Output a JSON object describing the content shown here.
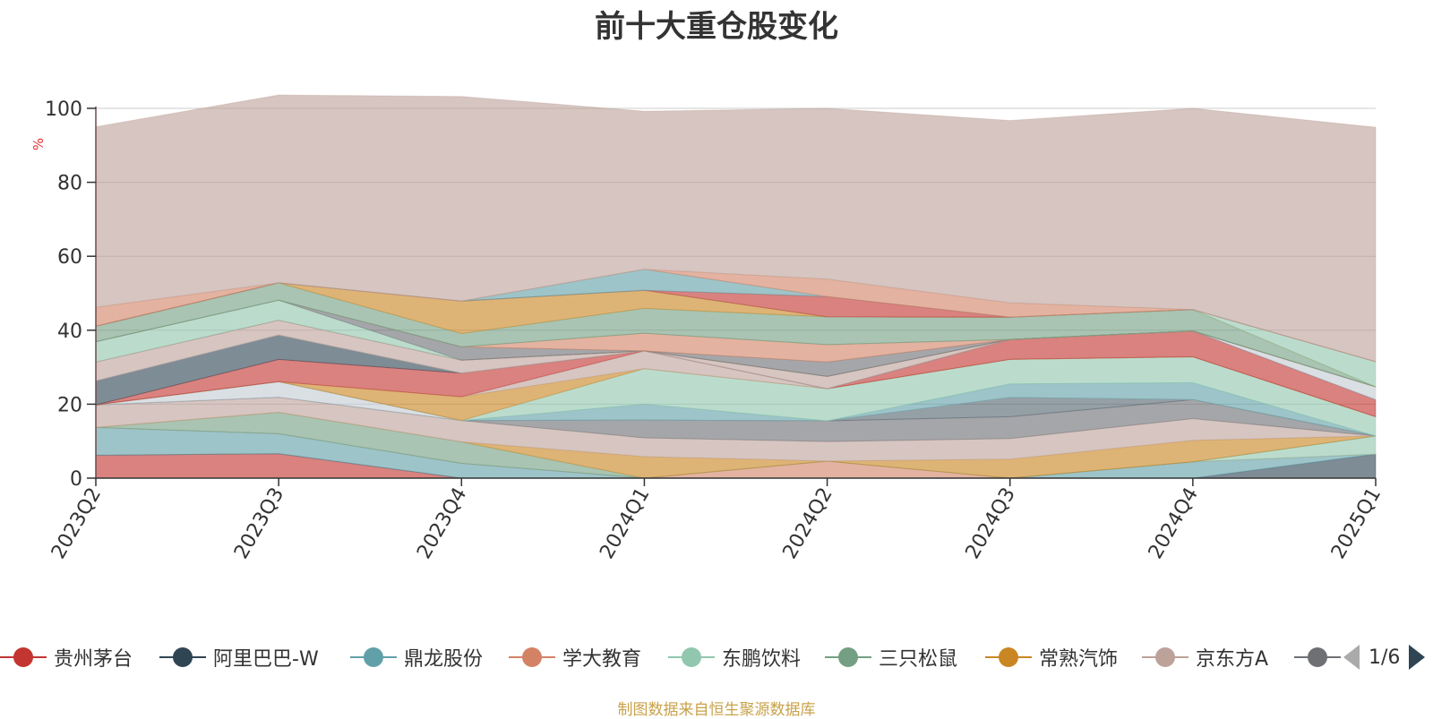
{
  "chart_data": {
    "type": "area",
    "stacked": true,
    "title": "前十大重仓股变化",
    "ylabel": "%",
    "ylim": [
      0,
      100
    ],
    "yticks": [
      0,
      20,
      40,
      60,
      80,
      100
    ],
    "grid": true,
    "categories": [
      "2023Q2",
      "2023Q3",
      "2023Q4",
      "2024Q1",
      "2024Q2",
      "2024Q3",
      "2024Q4",
      "2025Q1"
    ],
    "series": [
      {
        "name": "贵州茅台",
        "color": "#c23531",
        "values": [
          6.2,
          6.6,
          0,
          0,
          0,
          0,
          0,
          0
        ]
      },
      {
        "name": "阿里巴巴-W",
        "color": "#2f4554",
        "values": [
          0,
          0,
          0,
          0,
          0,
          0,
          0,
          6.5
        ]
      },
      {
        "name": "鼎龙股份",
        "color": "#61a0a8",
        "values": [
          7.5,
          5.4,
          4.0,
          0,
          0,
          0,
          4.4,
          0
        ]
      },
      {
        "name": "学大教育",
        "color": "#d48265",
        "values": [
          0,
          0,
          0,
          0,
          4.6,
          0,
          0,
          0
        ]
      },
      {
        "name": "东鹏饮料",
        "color": "#91c7ae",
        "values": [
          0,
          0,
          0,
          0,
          0,
          0,
          0,
          4.9
        ]
      },
      {
        "name": "三只松鼠",
        "color": "#749f83",
        "values": [
          0,
          5.8,
          5.8,
          0,
          0,
          0,
          0,
          0
        ]
      },
      {
        "name": "常熟汽饰",
        "color": "#ca8622",
        "values": [
          0,
          0,
          0,
          5.8,
          0,
          5.1,
          5.8,
          0
        ]
      },
      {
        "name": "京东方A",
        "color": "#bda29a",
        "values": [
          6.1,
          4.1,
          5.8,
          5.1,
          5.3,
          5.6,
          5.9,
          0
        ]
      },
      {
        "name": "",
        "color": "#6e7074",
        "values": [
          0,
          0,
          0,
          4.8,
          5.6,
          5.9,
          5.1,
          0
        ]
      },
      {
        "name": "",
        "color": "#546570",
        "values": [
          0,
          0,
          0,
          0,
          0,
          5.2,
          0,
          0
        ]
      },
      {
        "name": "",
        "color": "#c4ccd3",
        "values": [
          0,
          4.2,
          0,
          0,
          0,
          0,
          0,
          0
        ]
      },
      {
        "name": "",
        "color": "#bda29a",
        "values": [
          0,
          0,
          0,
          0,
          0,
          0,
          0,
          0
        ]
      },
      {
        "name": "",
        "color": "#61a0a8",
        "values": [
          0,
          0,
          0,
          4.3,
          0,
          3.7,
          4.6,
          0
        ]
      },
      {
        "name": "",
        "color": "#91c7ae",
        "values": [
          0,
          0,
          0,
          9.6,
          8.7,
          6.6,
          7.0,
          5.2
        ]
      },
      {
        "name": "",
        "color": "#c4ccd3",
        "values": [
          0,
          0,
          0,
          0,
          0,
          0,
          0,
          0
        ]
      },
      {
        "name": "",
        "color": "#ca8622",
        "values": [
          0,
          0,
          6.4,
          0,
          0,
          0,
          0,
          0
        ]
      },
      {
        "name": "",
        "color": "#bda29a",
        "values": [
          0,
          0,
          0,
          4.8,
          0,
          0,
          0,
          0
        ]
      },
      {
        "name": "",
        "color": "#c23531",
        "values": [
          0,
          6.0,
          6.4,
          0,
          0,
          5.4,
          7.0,
          4.6
        ]
      },
      {
        "name": "",
        "color": "#2f4554",
        "values": [
          6.5,
          6.6,
          0,
          0,
          0,
          0,
          0,
          0
        ]
      },
      {
        "name": "",
        "color": "#c4ccd3",
        "values": [
          0,
          0,
          0,
          0,
          0,
          0,
          0,
          3.5
        ]
      },
      {
        "name": "",
        "color": "#bda29a",
        "values": [
          5.1,
          4.0,
          3.5,
          0,
          3.3,
          0,
          0,
          0
        ]
      },
      {
        "name": "",
        "color": "#c23531",
        "values": [
          0,
          0,
          0,
          0,
          0,
          0,
          0,
          0
        ]
      },
      {
        "name": "",
        "color": "#bda29a",
        "values": [
          0,
          0,
          0,
          0,
          0,
          0,
          0,
          0
        ]
      },
      {
        "name": "",
        "color": "#91c7ae",
        "values": [
          5.5,
          5.4,
          0,
          0,
          0,
          0,
          0,
          0
        ]
      },
      {
        "name": "",
        "color": "#6e7074",
        "values": [
          0,
          0,
          3.6,
          0,
          3.9,
          0,
          0,
          0
        ]
      },
      {
        "name": "",
        "color": "#d48265",
        "values": [
          0,
          0,
          0,
          4.8,
          4.7,
          0,
          0,
          0
        ]
      },
      {
        "name": "",
        "color": "#749f83",
        "values": [
          0,
          0,
          0,
          0,
          0,
          0,
          0,
          0
        ]
      },
      {
        "name": "",
        "color": "#749f83",
        "values": [
          4.2,
          4.7,
          3.6,
          6.7,
          7.5,
          6.0,
          5.8,
          0
        ]
      },
      {
        "name": "",
        "color": "#ca8622",
        "values": [
          0,
          0,
          8.8,
          4.9,
          0,
          0,
          0,
          0
        ]
      },
      {
        "name": "",
        "color": "#91c7ae",
        "values": [
          0,
          0,
          0,
          0,
          0,
          0,
          0,
          6.8
        ]
      },
      {
        "name": "",
        "color": "#c23531",
        "values": [
          0,
          0,
          0,
          0,
          5.5,
          0,
          0,
          0
        ]
      },
      {
        "name": "",
        "color": "#61a0a8",
        "values": [
          0,
          0,
          0,
          5.7,
          0,
          0,
          0,
          0
        ]
      },
      {
        "name": "",
        "color": "#d48265",
        "values": [
          5.1,
          0,
          0,
          0,
          4.7,
          3.9,
          0,
          0
        ]
      },
      {
        "name": "",
        "color": "#bda29a",
        "values": [
          48.8,
          50.8,
          55.3,
          42.7,
          46.2,
          49.3,
          54.4,
          63.4
        ]
      }
    ]
  },
  "legend": {
    "items": [
      {
        "label": "贵州茅台",
        "color": "#c23531"
      },
      {
        "label": "阿里巴巴-W",
        "color": "#2f4554"
      },
      {
        "label": "鼎龙股份",
        "color": "#61a0a8"
      },
      {
        "label": "学大教育",
        "color": "#d48265"
      },
      {
        "label": "东鹏饮料",
        "color": "#91c7ae"
      },
      {
        "label": "三只松鼠",
        "color": "#749f83"
      },
      {
        "label": "常熟汽饰",
        "color": "#ca8622"
      },
      {
        "label": "京东方A",
        "color": "#bda29a"
      },
      {
        "label": "",
        "color": "#6e7074"
      }
    ],
    "pager_text": "1/6"
  },
  "source_text": "制图数据来自恒生聚源数据库"
}
